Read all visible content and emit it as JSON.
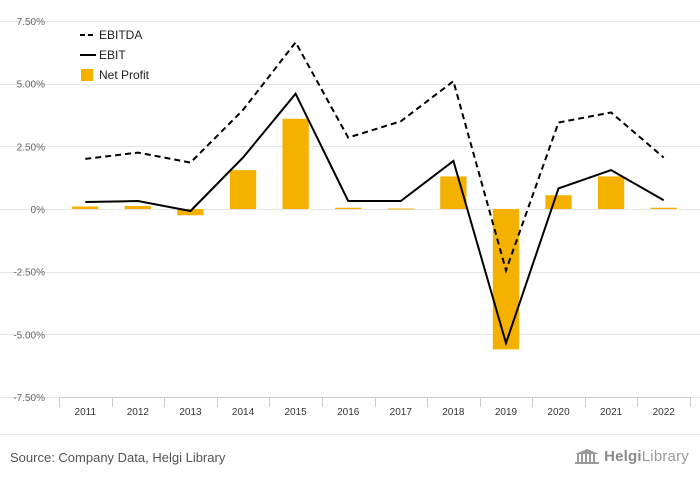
{
  "chart_data": {
    "type": "bar",
    "categories": [
      "2011",
      "2012",
      "2013",
      "2014",
      "2015",
      "2016",
      "2017",
      "2018",
      "2019",
      "2020",
      "2021",
      "2022"
    ],
    "y_ticks": [
      "7.50%",
      "5.00%",
      "2.50%",
      "0%",
      "-2.50%",
      "-5.00%",
      "-7.50%"
    ],
    "y_tick_values": [
      7.5,
      5.0,
      2.5,
      0,
      -2.5,
      -5.0,
      -7.5
    ],
    "ylim": [
      -7.5,
      7.5
    ],
    "grid": true,
    "legend_position": "top-left",
    "series": [
      {
        "name": "EBITDA",
        "type": "line",
        "style": "dashed",
        "color": "#000000",
        "values": [
          2.0,
          2.25,
          1.85,
          3.95,
          6.65,
          2.85,
          3.5,
          5.1,
          -2.45,
          3.45,
          3.85,
          2.05
        ]
      },
      {
        "name": "EBIT",
        "type": "line",
        "style": "solid",
        "color": "#000000",
        "values": [
          0.28,
          0.32,
          -0.08,
          2.05,
          4.6,
          0.32,
          0.32,
          1.92,
          -5.35,
          0.82,
          1.55,
          0.35
        ]
      },
      {
        "name": "Net Profit",
        "type": "bar",
        "color": "#f5b100",
        "values": [
          0.1,
          0.12,
          -0.25,
          1.55,
          3.6,
          0.05,
          0.02,
          1.3,
          -5.6,
          0.55,
          1.3,
          0.05
        ]
      }
    ]
  },
  "footer": {
    "source": "Source: Company Data, Helgi Library",
    "logo_word1": "Helgi",
    "logo_word2": "Library"
  }
}
